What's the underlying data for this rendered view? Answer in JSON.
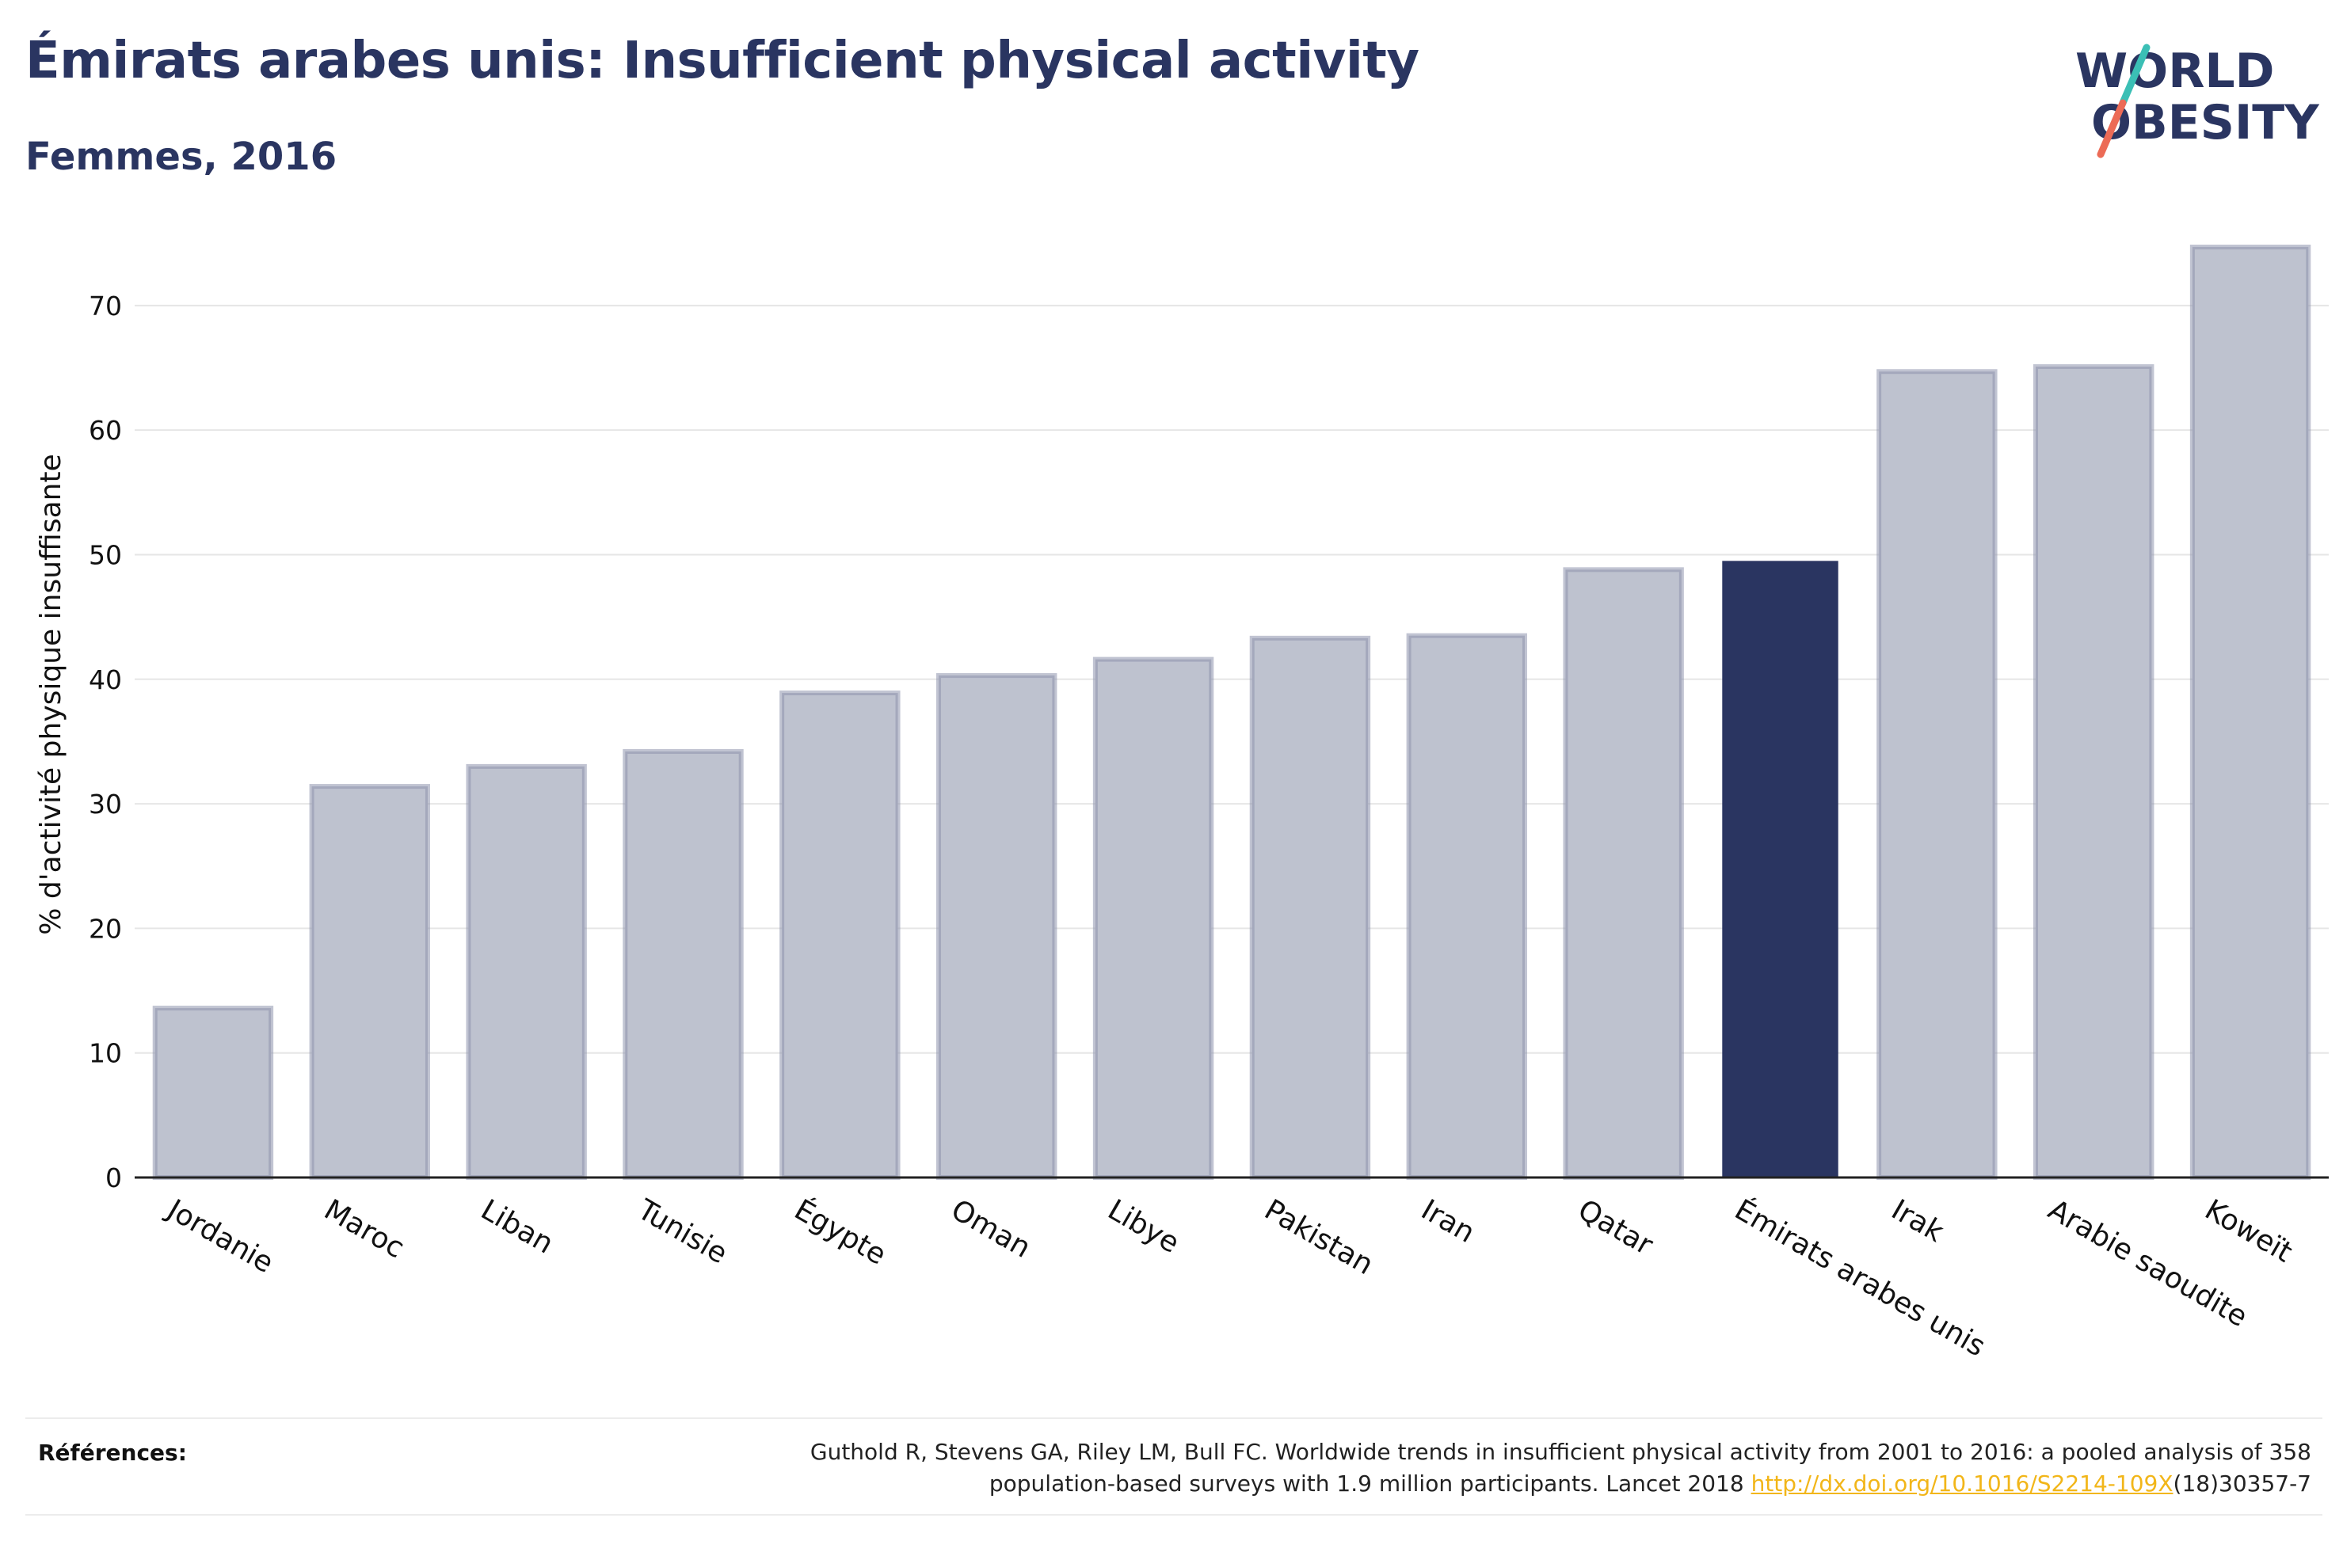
{
  "header": {
    "title": "Émirats arabes unis: Insufficient physical activity",
    "subtitle": "Femmes, 2016"
  },
  "logo": {
    "line1": "WORLD",
    "line2": "OBESITY",
    "colors": {
      "text": "#2a3561",
      "slash_top": "#3bbfb5",
      "slash_bottom": "#ec6b56"
    }
  },
  "chart_data": {
    "type": "bar",
    "categories": [
      "Jordanie",
      "Maroc",
      "Liban",
      "Tunisie",
      "Égypte",
      "Oman",
      "Libye",
      "Pakistan",
      "Iran",
      "Qatar",
      "Émirats arabes unis",
      "Irak",
      "Arabie saoudite",
      "Koweït"
    ],
    "values": [
      13.6,
      31.4,
      33.0,
      34.2,
      38.9,
      40.3,
      41.6,
      43.3,
      43.5,
      48.8,
      49.5,
      64.7,
      65.1,
      74.7
    ],
    "highlight": "Émirats arabes unis",
    "ylabel": "% d'activité physique insuffisante",
    "xlabel": "",
    "ylim": [
      0,
      78
    ],
    "yticks": [
      0,
      10,
      20,
      30,
      40,
      50,
      60,
      70
    ],
    "grid": true,
    "colors": {
      "bar": "#bec2cf",
      "bar_border": "#8e94ad",
      "highlight": "#2a3561",
      "grid": "#e6e6e6",
      "axis": "#222222"
    }
  },
  "references": {
    "label": "Références:",
    "text_line1": "Guthold R, Stevens GA, Riley LM, Bull FC. Worldwide trends in insufficient physical activity from 2001 to 2016: a pooled analysis of 358",
    "text_line2_before": "population-based surveys with 1.9 million participants. Lancet 2018 ",
    "link": "http://dx.doi.org/10.1016/S2214-109X",
    "text_line2_after": "(18)30357-7"
  }
}
